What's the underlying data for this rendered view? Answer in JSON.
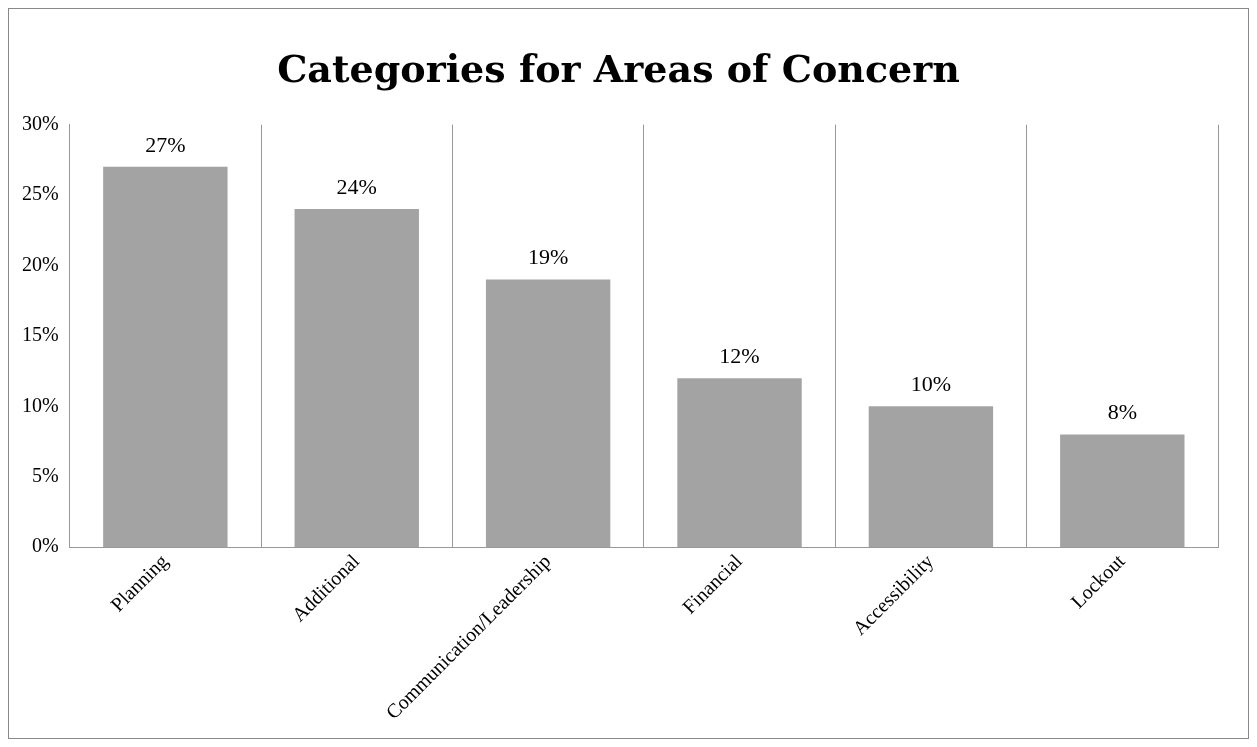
{
  "chart_data": {
    "type": "bar",
    "title": "Categories for Areas of Concern",
    "categories": [
      "Planning",
      "Additional",
      "Communication/Leadership",
      "Financial",
      "Accessibility",
      "Lockout"
    ],
    "values": [
      27,
      24,
      19,
      12,
      10,
      8
    ],
    "value_labels": [
      "27%",
      "24%",
      "19%",
      "12%",
      "10%",
      "8%"
    ],
    "color": "#a3a3a3",
    "ylim": [
      0,
      30
    ],
    "yticks": [
      {
        "value": 0,
        "label": "0%"
      },
      {
        "value": 5,
        "label": "5%"
      },
      {
        "value": 10,
        "label": "10%"
      },
      {
        "value": 15,
        "label": "15%"
      },
      {
        "value": 20,
        "label": "20%"
      },
      {
        "value": 25,
        "label": "25%"
      },
      {
        "value": 30,
        "label": "30%"
      }
    ],
    "grid": "x",
    "legend": false
  }
}
